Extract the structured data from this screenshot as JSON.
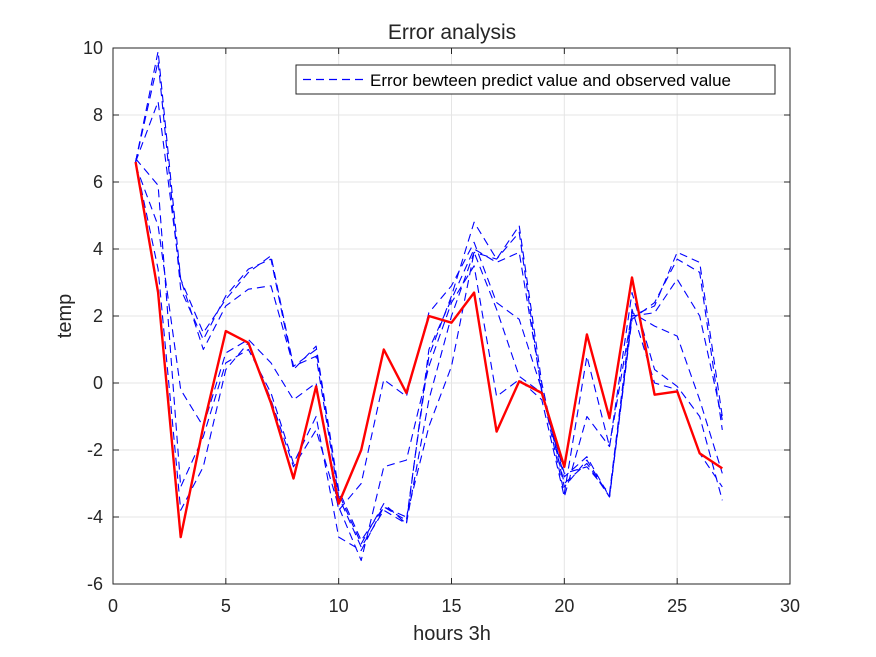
{
  "chart_data": {
    "type": "line",
    "title": "Error analysis",
    "xlabel": "hours 3h",
    "ylabel": "temp",
    "xlim": [
      0,
      30
    ],
    "ylim": [
      -6,
      10
    ],
    "xticks": [
      0,
      5,
      10,
      15,
      20,
      25,
      30
    ],
    "yticks": [
      -6,
      -4,
      -2,
      0,
      2,
      4,
      6,
      8,
      10
    ],
    "grid": true,
    "legend": {
      "position": "top-right",
      "entries": [
        "Error bewteen predict value and observed value"
      ]
    },
    "x": [
      1,
      2,
      3,
      4,
      5,
      6,
      7,
      8,
      9,
      10,
      11,
      12,
      13,
      14,
      15,
      16,
      17,
      18,
      19,
      20,
      21,
      22,
      23,
      24,
      25,
      26,
      27
    ],
    "series": [
      {
        "name": "Error bewteen predict value and observed value",
        "color": "#0000ff",
        "style": "dashed",
        "values": [
          6.6,
          9.9,
          3.1,
          1.5,
          2.5,
          3.3,
          3.8,
          0.5,
          1.0,
          -3.3,
          -4.8,
          -3.6,
          -4.2,
          1.0,
          2.5,
          4.0,
          3.6,
          3.9,
          -0.2,
          -3.0,
          -2.4,
          -3.4,
          2.0,
          2.3,
          3.9,
          3.6,
          -1.0
        ]
      },
      {
        "color": "#0000ff",
        "style": "dashed",
        "values": [
          6.6,
          9.6,
          2.8,
          1.3,
          2.6,
          3.4,
          3.7,
          0.4,
          1.1,
          -3.2,
          -4.7,
          -3.7,
          -4.1,
          0.8,
          2.6,
          4.8,
          3.7,
          4.7,
          0.0,
          -3.1,
          -2.3,
          -3.4,
          1.9,
          2.4,
          3.7,
          3.3,
          -1.4
        ]
      },
      {
        "color": "#0000ff",
        "style": "dashed",
        "values": [
          6.6,
          8.4,
          3.1,
          1.0,
          2.3,
          2.8,
          2.9,
          0.5,
          0.8,
          -3.4,
          -4.9,
          -3.8,
          -4.2,
          -0.5,
          2.0,
          3.9,
          3.7,
          4.5,
          -0.3,
          -2.8,
          -2.2,
          -3.4,
          2.0,
          2.1,
          3.1,
          2.0,
          -1.1
        ]
      },
      {
        "color": "#0000ff",
        "style": "dashed",
        "values": [
          6.5,
          4.7,
          -0.2,
          -1.3,
          0.9,
          1.3,
          0.6,
          -0.5,
          0.0,
          -3.8,
          -3.0,
          0.1,
          -0.4,
          2.1,
          2.9,
          4.2,
          2.4,
          1.9,
          -0.2,
          -3.3,
          0.8,
          -1.9,
          2.1,
          1.7,
          1.4,
          -0.5,
          -2.7
        ]
      },
      {
        "color": "#0000ff",
        "style": "dashed",
        "values": [
          6.6,
          3.4,
          -3.8,
          -2.5,
          0.4,
          1.2,
          -0.5,
          -2.5,
          -1.4,
          -3.7,
          -5.3,
          -2.5,
          -2.3,
          0.5,
          2.4,
          3.5,
          -0.4,
          0.1,
          -0.5,
          -3.4,
          -1.0,
          -1.9,
          2.7,
          0.4,
          -0.1,
          -1.0,
          -3.5
        ]
      },
      {
        "color": "#0000ff",
        "style": "dashed",
        "values": [
          6.7,
          5.9,
          -3.1,
          -1.6,
          0.6,
          1.0,
          -0.3,
          -2.4,
          -1.0,
          -4.6,
          -5.0,
          -3.7,
          -4.0,
          -1.3,
          0.5,
          3.9,
          2.2,
          0.2,
          -0.3,
          -2.7,
          -2.5,
          -3.3,
          2.2,
          0.0,
          -0.2,
          -2.1,
          -3.1
        ]
      },
      {
        "color": "#ff0000",
        "style": "solid",
        "values": [
          6.6,
          2.7,
          -4.6,
          -1.3,
          1.55,
          1.2,
          -0.6,
          -2.85,
          -0.1,
          -3.6,
          -2.0,
          1.0,
          -0.3,
          2.0,
          1.8,
          2.7,
          -1.45,
          0.05,
          -0.3,
          -2.5,
          1.45,
          -1.05,
          3.15,
          -0.35,
          -0.25,
          -2.1,
          -2.55
        ]
      }
    ]
  }
}
